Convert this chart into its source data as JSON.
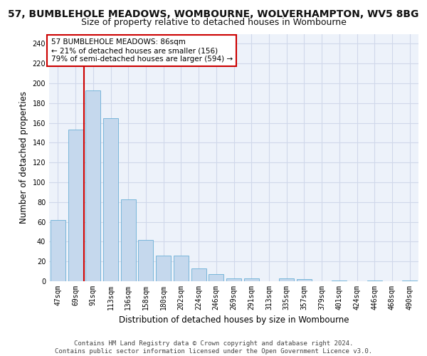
{
  "title_line1": "57, BUMBLEHOLE MEADOWS, WOMBOURNE, WOLVERHAMPTON, WV5 8BG",
  "title_line2": "Size of property relative to detached houses in Wombourne",
  "xlabel": "Distribution of detached houses by size in Wombourne",
  "ylabel": "Number of detached properties",
  "bar_labels": [
    "47sqm",
    "69sqm",
    "91sqm",
    "113sqm",
    "136sqm",
    "158sqm",
    "180sqm",
    "202sqm",
    "224sqm",
    "246sqm",
    "269sqm",
    "291sqm",
    "313sqm",
    "335sqm",
    "357sqm",
    "379sqm",
    "401sqm",
    "424sqm",
    "446sqm",
    "468sqm",
    "490sqm"
  ],
  "bar_values": [
    62,
    153,
    193,
    165,
    83,
    42,
    26,
    26,
    13,
    7,
    3,
    3,
    0,
    3,
    2,
    0,
    1,
    0,
    1,
    0,
    1
  ],
  "bar_color": "#c5d8ed",
  "bar_edge_color": "#6aafd6",
  "highlight_bar_index": 2,
  "highlight_color": "#cc0000",
  "annotation_text": "57 BUMBLEHOLE MEADOWS: 86sqm\n← 21% of detached houses are smaller (156)\n79% of semi-detached houses are larger (594) →",
  "annotation_box_color": "#ffffff",
  "annotation_box_edge": "#cc0000",
  "ylim": [
    0,
    250
  ],
  "yticks": [
    0,
    20,
    40,
    60,
    80,
    100,
    120,
    140,
    160,
    180,
    200,
    220,
    240
  ],
  "grid_color": "#d0d8ea",
  "background_color": "#edf2fa",
  "footer_line1": "Contains HM Land Registry data © Crown copyright and database right 2024.",
  "footer_line2": "Contains public sector information licensed under the Open Government Licence v3.0.",
  "title_fontsize": 10,
  "subtitle_fontsize": 9,
  "tick_fontsize": 7,
  "label_fontsize": 8.5,
  "footer_fontsize": 6.5
}
